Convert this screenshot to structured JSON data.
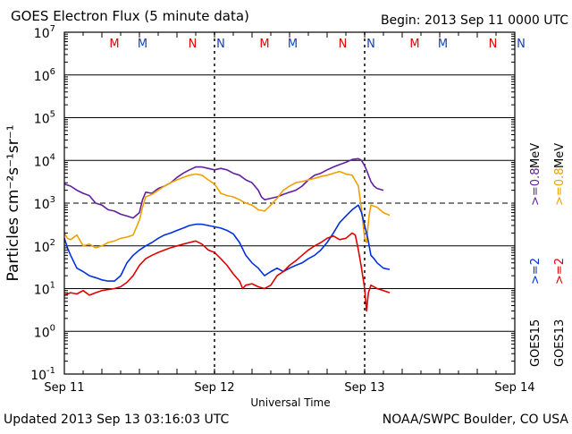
{
  "header": {
    "title": "GOES Electron Flux (5 minute data)",
    "begin": "Begin: 2013 Sep 11 0000 UTC"
  },
  "footer": {
    "updated": "Updated 2013 Sep 13 03:16:03 UTC",
    "credit": "NOAA/SWPC Boulder, CO USA"
  },
  "colors": {
    "purple": "#6020a0",
    "orange": "#f0a000",
    "blue": "#0030e0",
    "red": "#e00000",
    "marker_red": "#e00000",
    "marker_blue": "#1040c0",
    "axis": "#000000"
  },
  "chart_data": {
    "type": "line",
    "x_unit": "hours since 2013 Sep 11 0000 UTC",
    "xlim": [
      0,
      72
    ],
    "ylim": [
      0.1,
      10000000
    ],
    "y_scale": "log",
    "xlabel": "Universal Time",
    "ylabel": "Particles cm⁻²s⁻¹sr⁻¹",
    "x_ticks": [
      {
        "x": 0,
        "label": "Sep 11"
      },
      {
        "x": 24,
        "label": "Sep 12"
      },
      {
        "x": 48,
        "label": "Sep 13"
      },
      {
        "x": 72,
        "label": "Sep 14"
      }
    ],
    "y_ticks": [
      {
        "exp": "7"
      },
      {
        "exp": "6"
      },
      {
        "exp": "5"
      },
      {
        "exp": "4"
      },
      {
        "exp": "3"
      },
      {
        "exp": "2"
      },
      {
        "exp": "1"
      },
      {
        "exp": "0"
      },
      {
        "exp": "-1"
      }
    ],
    "grid": "horizontal solid lines at each decade, dashed line at 1000",
    "threshold": 1000,
    "markers": [
      {
        "label": "M",
        "x": 8,
        "color": "red"
      },
      {
        "label": "M",
        "x": 12.5,
        "color": "blue"
      },
      {
        "label": "N",
        "x": 20.5,
        "color": "red"
      },
      {
        "label": "N",
        "x": 25,
        "color": "blue"
      },
      {
        "label": "M",
        "x": 32,
        "color": "red"
      },
      {
        "label": "M",
        "x": 36.5,
        "color": "blue"
      },
      {
        "label": "N",
        "x": 44.5,
        "color": "red"
      },
      {
        "label": "N",
        "x": 49,
        "color": "blue"
      },
      {
        "label": "M",
        "x": 56,
        "color": "red"
      },
      {
        "label": "M",
        "x": 60.5,
        "color": "blue"
      },
      {
        "label": "N",
        "x": 68.5,
        "color": "red"
      },
      {
        "label": "N",
        "x": 73,
        "color": "blue"
      }
    ],
    "legend": {
      "goes15": "GOES15",
      "goes13": "GOES13",
      "gt2_a": ">=2",
      "gt2_b": ">=2",
      "gt08_a": ">=0.8",
      "gt08_b": ">=0.8",
      "mev_a": "MeV",
      "mev_b": "MeV"
    },
    "series": [
      {
        "color": "purple",
        "points": [
          [
            0,
            2800
          ],
          [
            1,
            2500
          ],
          [
            2,
            2000
          ],
          [
            3,
            1700
          ],
          [
            4,
            1500
          ],
          [
            5,
            1000
          ],
          [
            6,
            900
          ],
          [
            7,
            700
          ],
          [
            8,
            650
          ],
          [
            9,
            550
          ],
          [
            10,
            500
          ],
          [
            11,
            450
          ],
          [
            12,
            600
          ],
          [
            12.5,
            1200
          ],
          [
            13,
            1800
          ],
          [
            14,
            1700
          ],
          [
            15,
            2200
          ],
          [
            16,
            2500
          ],
          [
            17,
            3000
          ],
          [
            18,
            4000
          ],
          [
            19,
            5000
          ],
          [
            20,
            6000
          ],
          [
            21,
            7000
          ],
          [
            22,
            7000
          ],
          [
            23,
            6500
          ],
          [
            24,
            6000
          ],
          [
            25,
            6500
          ],
          [
            26,
            6000
          ],
          [
            27,
            5000
          ],
          [
            28,
            4500
          ],
          [
            29,
            3500
          ],
          [
            30,
            3000
          ],
          [
            31,
            2000
          ],
          [
            31.5,
            1400
          ],
          [
            32,
            1200
          ],
          [
            33,
            1300
          ],
          [
            34,
            1400
          ],
          [
            35,
            1600
          ],
          [
            36,
            1800
          ],
          [
            37,
            2000
          ],
          [
            38,
            2500
          ],
          [
            39,
            3500
          ],
          [
            40,
            4500
          ],
          [
            41,
            5000
          ],
          [
            42,
            6000
          ],
          [
            43,
            7000
          ],
          [
            44,
            8000
          ],
          [
            45,
            9000
          ],
          [
            46,
            10500
          ],
          [
            47,
            11000
          ],
          [
            47.5,
            10000
          ],
          [
            48,
            7500
          ],
          [
            48.5,
            5000
          ],
          [
            49,
            3200
          ],
          [
            49.5,
            2500
          ],
          [
            50,
            2200
          ],
          [
            51,
            2000
          ]
        ]
      },
      {
        "color": "orange",
        "points": [
          [
            0,
            200
          ],
          [
            0.5,
            150
          ],
          [
            1,
            140
          ],
          [
            2,
            180
          ],
          [
            3,
            100
          ],
          [
            4,
            110
          ],
          [
            5,
            90
          ],
          [
            6,
            100
          ],
          [
            7,
            120
          ],
          [
            8,
            130
          ],
          [
            9,
            150
          ],
          [
            10,
            160
          ],
          [
            11,
            180
          ],
          [
            12,
            400
          ],
          [
            12.5,
            800
          ],
          [
            13,
            1400
          ],
          [
            14,
            1600
          ],
          [
            15,
            2000
          ],
          [
            16,
            2500
          ],
          [
            17,
            3000
          ],
          [
            18,
            3500
          ],
          [
            19,
            4000
          ],
          [
            20,
            4500
          ],
          [
            21,
            4800
          ],
          [
            22,
            4500
          ],
          [
            23,
            3500
          ],
          [
            24,
            2800
          ],
          [
            25,
            1700
          ],
          [
            26,
            1500
          ],
          [
            27,
            1400
          ],
          [
            28,
            1200
          ],
          [
            29,
            1000
          ],
          [
            30,
            900
          ],
          [
            31,
            700
          ],
          [
            32,
            650
          ],
          [
            33,
            900
          ],
          [
            34,
            1300
          ],
          [
            35,
            2000
          ],
          [
            36,
            2500
          ],
          [
            37,
            3000
          ],
          [
            38,
            3200
          ],
          [
            39,
            3500
          ],
          [
            40,
            3800
          ],
          [
            41,
            4200
          ],
          [
            42,
            4500
          ],
          [
            43,
            5000
          ],
          [
            44,
            5500
          ],
          [
            45,
            4800
          ],
          [
            46,
            4500
          ],
          [
            47,
            2500
          ],
          [
            47.5,
            700
          ],
          [
            48,
            150
          ],
          [
            48.3,
            120
          ],
          [
            48.7,
            500
          ],
          [
            49,
            900
          ],
          [
            50,
            800
          ],
          [
            51,
            600
          ],
          [
            52,
            520
          ]
        ]
      },
      {
        "color": "blue",
        "points": [
          [
            0,
            150
          ],
          [
            0.5,
            90
          ],
          [
            1,
            60
          ],
          [
            2,
            30
          ],
          [
            3,
            25
          ],
          [
            4,
            20
          ],
          [
            5,
            18
          ],
          [
            6,
            16
          ],
          [
            7,
            15
          ],
          [
            8,
            15
          ],
          [
            9,
            20
          ],
          [
            10,
            40
          ],
          [
            11,
            60
          ],
          [
            12,
            80
          ],
          [
            13,
            100
          ],
          [
            14,
            120
          ],
          [
            15,
            150
          ],
          [
            16,
            180
          ],
          [
            17,
            200
          ],
          [
            18,
            230
          ],
          [
            19,
            260
          ],
          [
            20,
            300
          ],
          [
            21,
            320
          ],
          [
            22,
            320
          ],
          [
            23,
            300
          ],
          [
            24,
            280
          ],
          [
            25,
            260
          ],
          [
            26,
            230
          ],
          [
            27,
            190
          ],
          [
            28,
            120
          ],
          [
            29,
            60
          ],
          [
            30,
            40
          ],
          [
            31,
            30
          ],
          [
            32,
            20
          ],
          [
            33,
            25
          ],
          [
            34,
            30
          ],
          [
            35,
            25
          ],
          [
            36,
            30
          ],
          [
            37,
            35
          ],
          [
            38,
            40
          ],
          [
            39,
            50
          ],
          [
            40,
            60
          ],
          [
            41,
            80
          ],
          [
            42,
            120
          ],
          [
            43,
            200
          ],
          [
            44,
            350
          ],
          [
            45,
            500
          ],
          [
            46,
            700
          ],
          [
            47,
            900
          ],
          [
            47.5,
            600
          ],
          [
            48,
            300
          ],
          [
            48.5,
            150
          ],
          [
            49,
            60
          ],
          [
            49.5,
            50
          ],
          [
            50,
            40
          ],
          [
            51,
            30
          ],
          [
            52,
            28
          ]
        ]
      },
      {
        "color": "red",
        "points": [
          [
            0,
            7
          ],
          [
            1,
            8
          ],
          [
            2,
            7.5
          ],
          [
            3,
            9
          ],
          [
            4,
            7
          ],
          [
            5,
            8
          ],
          [
            6,
            9
          ],
          [
            7,
            9.5
          ],
          [
            8,
            10
          ],
          [
            9,
            11
          ],
          [
            10,
            14
          ],
          [
            11,
            20
          ],
          [
            12,
            35
          ],
          [
            13,
            50
          ],
          [
            14,
            60
          ],
          [
            15,
            70
          ],
          [
            16,
            80
          ],
          [
            17,
            90
          ],
          [
            18,
            100
          ],
          [
            19,
            110
          ],
          [
            20,
            120
          ],
          [
            21,
            130
          ],
          [
            22,
            110
          ],
          [
            23,
            80
          ],
          [
            24,
            70
          ],
          [
            25,
            50
          ],
          [
            26,
            35
          ],
          [
            27,
            22
          ],
          [
            28,
            15
          ],
          [
            28.5,
            10
          ],
          [
            29,
            12
          ],
          [
            30,
            13
          ],
          [
            31,
            11
          ],
          [
            32,
            10
          ],
          [
            33,
            12
          ],
          [
            34,
            20
          ],
          [
            35,
            25
          ],
          [
            36,
            35
          ],
          [
            37,
            45
          ],
          [
            38,
            60
          ],
          [
            39,
            80
          ],
          [
            40,
            100
          ],
          [
            41,
            120
          ],
          [
            42,
            150
          ],
          [
            43,
            170
          ],
          [
            44,
            140
          ],
          [
            45,
            150
          ],
          [
            46,
            200
          ],
          [
            46.5,
            180
          ],
          [
            47,
            80
          ],
          [
            47.5,
            30
          ],
          [
            48,
            10
          ],
          [
            48.3,
            3
          ],
          [
            48.6,
            8
          ],
          [
            49,
            12
          ],
          [
            50,
            10
          ],
          [
            51,
            9
          ],
          [
            52,
            8
          ]
        ]
      }
    ]
  }
}
